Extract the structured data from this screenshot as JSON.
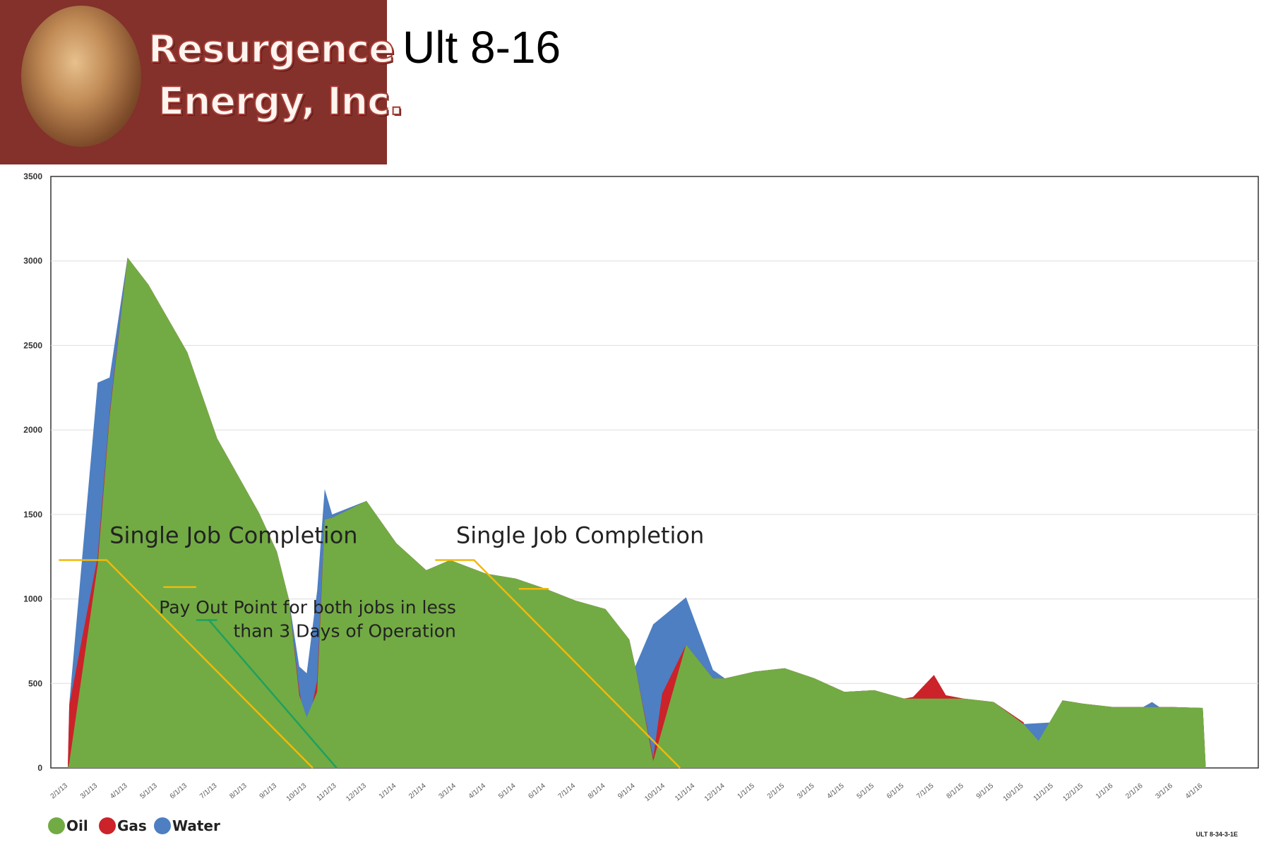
{
  "logo": {
    "line1": "Resurgence",
    "line2": "Energy, Inc.",
    "background": "#84302b"
  },
  "page_title": "Ult 8-16",
  "footnote": "ULT 8-34-3-1E",
  "colors": {
    "oil": "#72ab43",
    "gas": "#cc2229",
    "water": "#4d7fc2",
    "annotation_line": "#f2b80a",
    "payout_line": "#1fa060",
    "grid": "#dddddd"
  },
  "chart_data": {
    "type": "area",
    "title": "",
    "xlabel": "",
    "ylabel": "",
    "ylim": [
      0,
      3500
    ],
    "yticks": [
      0,
      500,
      1000,
      1500,
      2000,
      2500,
      3000,
      3500
    ],
    "grid": true,
    "legend": "bottom-left",
    "x": [
      "2/1/13",
      "3/1/13",
      "4/1/13",
      "5/1/13",
      "6/1/13",
      "7/1/13",
      "8/1/13",
      "9/1/13",
      "10/1/13",
      "11/1/13",
      "12/1/13",
      "1/1/14",
      "2/1/14",
      "3/1/14",
      "4/1/14",
      "5/1/14",
      "6/1/14",
      "7/1/14",
      "8/1/14",
      "9/1/14",
      "10/1/14",
      "11/1/14",
      "12/1/14",
      "1/1/15",
      "2/1/15",
      "3/1/15",
      "4/1/15",
      "5/1/15",
      "6/1/15",
      "7/1/15",
      "8/1/15",
      "9/1/15",
      "10/1/15",
      "11/1/15",
      "12/1/15",
      "1/1/16",
      "2/1/16",
      "3/1/16",
      "4/1/16"
    ],
    "series": [
      {
        "name": "Water",
        "color": "#4d7fc2",
        "values": [
          [
            0,
            0
          ],
          [
            0.05,
            380
          ],
          [
            1,
            2280
          ],
          [
            1.4,
            2310
          ],
          [
            2,
            3020
          ],
          [
            2.7,
            2860
          ],
          [
            4,
            2460
          ],
          [
            5,
            1950
          ],
          [
            6.4,
            1510
          ],
          [
            7,
            1280
          ],
          [
            7.4,
            1000
          ],
          [
            7.75,
            600
          ],
          [
            8,
            560
          ],
          [
            8.35,
            1050
          ],
          [
            8.6,
            1650
          ],
          [
            8.85,
            1500
          ],
          [
            10,
            1580
          ],
          [
            11,
            1330
          ],
          [
            12,
            1170
          ],
          [
            12.8,
            1230
          ],
          [
            14,
            1150
          ],
          [
            15,
            1120
          ],
          [
            16,
            1060
          ],
          [
            17,
            990
          ],
          [
            18,
            940
          ],
          [
            18.8,
            760
          ],
          [
            19,
            600
          ],
          [
            19.6,
            850
          ],
          [
            20.7,
            1010
          ],
          [
            21.6,
            580
          ],
          [
            22,
            530
          ],
          [
            23,
            570
          ],
          [
            24,
            590
          ],
          [
            25,
            530
          ],
          [
            26,
            450
          ],
          [
            27,
            460
          ],
          [
            28,
            410
          ],
          [
            29,
            410
          ],
          [
            30,
            410
          ],
          [
            31,
            390
          ],
          [
            32,
            260
          ],
          [
            33,
            270
          ],
          [
            33.3,
            400
          ],
          [
            34,
            380
          ],
          [
            35,
            360
          ],
          [
            36,
            360
          ],
          [
            36.3,
            390
          ],
          [
            36.55,
            360
          ],
          [
            37,
            360
          ],
          [
            38,
            355
          ],
          [
            38.1,
            0
          ]
        ]
      },
      {
        "name": "Gas",
        "color": "#cc2229",
        "values": [
          [
            0,
            0
          ],
          [
            0.05,
            370
          ],
          [
            1,
            1250
          ],
          [
            1.4,
            2100
          ],
          [
            2,
            3020
          ],
          [
            2.7,
            2860
          ],
          [
            4,
            2460
          ],
          [
            5,
            1950
          ],
          [
            6.4,
            1510
          ],
          [
            7,
            1280
          ],
          [
            7.4,
            1000
          ],
          [
            7.75,
            460
          ],
          [
            8,
            210
          ],
          [
            8.35,
            520
          ],
          [
            8.6,
            1470
          ],
          [
            8.85,
            1480
          ],
          [
            10,
            1580
          ],
          [
            11,
            1330
          ],
          [
            12,
            1170
          ],
          [
            12.8,
            1230
          ],
          [
            14,
            1150
          ],
          [
            15,
            1120
          ],
          [
            16,
            1060
          ],
          [
            17,
            990
          ],
          [
            18,
            940
          ],
          [
            18.8,
            760
          ],
          [
            19,
            600
          ],
          [
            19.6,
            60
          ],
          [
            19.9,
            440
          ],
          [
            20.7,
            730
          ],
          [
            21.6,
            530
          ],
          [
            22,
            530
          ],
          [
            23,
            570
          ],
          [
            24,
            590
          ],
          [
            25,
            530
          ],
          [
            26,
            450
          ],
          [
            27,
            460
          ],
          [
            28,
            410
          ],
          [
            28.3,
            420
          ],
          [
            29,
            550
          ],
          [
            29.4,
            430
          ],
          [
            30,
            410
          ],
          [
            31,
            390
          ],
          [
            32,
            270
          ],
          [
            32.3,
            110
          ],
          [
            33,
            250
          ],
          [
            33.3,
            400
          ],
          [
            34,
            380
          ],
          [
            35,
            360
          ],
          [
            36,
            360
          ],
          [
            37,
            360
          ],
          [
            38,
            355
          ],
          [
            38.1,
            0
          ]
        ]
      },
      {
        "name": "Oil",
        "color": "#72ab43",
        "values": [
          [
            0,
            0
          ],
          [
            0.05,
            30
          ],
          [
            1,
            1200
          ],
          [
            1.4,
            2080
          ],
          [
            2,
            3020
          ],
          [
            2.7,
            2860
          ],
          [
            4,
            2460
          ],
          [
            5,
            1950
          ],
          [
            6.4,
            1510
          ],
          [
            7,
            1280
          ],
          [
            7.4,
            1000
          ],
          [
            7.75,
            430
          ],
          [
            8,
            300
          ],
          [
            8.35,
            450
          ],
          [
            8.6,
            1470
          ],
          [
            8.85,
            1480
          ],
          [
            10,
            1580
          ],
          [
            11,
            1330
          ],
          [
            12,
            1170
          ],
          [
            12.8,
            1230
          ],
          [
            14,
            1150
          ],
          [
            15,
            1120
          ],
          [
            16,
            1060
          ],
          [
            17,
            990
          ],
          [
            18,
            940
          ],
          [
            18.8,
            760
          ],
          [
            19,
            600
          ],
          [
            19.6,
            40
          ],
          [
            20.7,
            730
          ],
          [
            21.6,
            530
          ],
          [
            22,
            530
          ],
          [
            23,
            570
          ],
          [
            24,
            590
          ],
          [
            25,
            530
          ],
          [
            26,
            450
          ],
          [
            27,
            460
          ],
          [
            28,
            410
          ],
          [
            29,
            410
          ],
          [
            30,
            410
          ],
          [
            31,
            390
          ],
          [
            32,
            260
          ],
          [
            32.5,
            160
          ],
          [
            33.3,
            400
          ],
          [
            34,
            380
          ],
          [
            35,
            360
          ],
          [
            36,
            360
          ],
          [
            37,
            360
          ],
          [
            38,
            355
          ],
          [
            38.1,
            0
          ]
        ]
      }
    ],
    "annotations": [
      {
        "text": "Single Job Completion",
        "x": 1.4,
        "y": 1330,
        "anchor": "start"
      },
      {
        "text": "Single Job Completion",
        "x": 13.0,
        "y": 1330,
        "anchor": "start"
      },
      {
        "text": "Pay Out Point for both jobs in less",
        "x": 13.0,
        "y": 915,
        "anchor": "end"
      },
      {
        "text": "than 3 Days of Operation",
        "x": 13.0,
        "y": 775,
        "anchor": "end"
      }
    ],
    "marker_lines": [
      {
        "color": "#f2b80a",
        "points": [
          [
            -0.3,
            1230
          ],
          [
            1.3,
            1230
          ],
          [
            8.2,
            0
          ]
        ]
      },
      {
        "color": "#f2b80a",
        "points": [
          [
            3.2,
            1070
          ],
          [
            4.3,
            1070
          ]
        ]
      },
      {
        "color": "#f2b80a",
        "points": [
          [
            12.3,
            1230
          ],
          [
            13.6,
            1230
          ],
          [
            20.5,
            0
          ]
        ]
      },
      {
        "color": "#f2b80a",
        "points": [
          [
            15.1,
            1060
          ],
          [
            16.1,
            1060
          ]
        ]
      },
      {
        "color": "#1fa060",
        "points": [
          [
            4.3,
            875
          ],
          [
            5.0,
            875
          ]
        ]
      },
      {
        "color": "#1fa060",
        "points": [
          [
            4.7,
            880
          ],
          [
            9.0,
            0
          ]
        ]
      }
    ]
  },
  "legend": [
    {
      "label": "Oil",
      "color": "#72ab43"
    },
    {
      "label": "Gas",
      "color": "#cc2229"
    },
    {
      "label": "Water",
      "color": "#4d7fc2"
    }
  ]
}
